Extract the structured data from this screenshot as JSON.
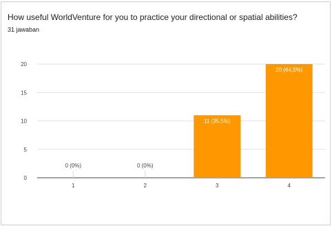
{
  "header": {
    "question": "How useful WorldVenture for you to practice your directional or spatial abilities?",
    "responses": "31 jawaban"
  },
  "colors": {
    "bar": "#ff9800",
    "grid": "#d9d9d9",
    "axis": "#444444",
    "label_inside": "#ffffff",
    "label_outside": "#444444"
  },
  "chart_data": {
    "type": "bar",
    "title": "How useful WorldVenture for you to practice your directional or spatial abilities?",
    "subtitle": "31 jawaban",
    "categories": [
      "1",
      "2",
      "3",
      "4"
    ],
    "values": [
      0,
      0,
      11,
      20
    ],
    "data_labels": [
      "0 (0%)",
      "0 (0%)",
      "11 (35,5%)",
      "20 (64,5%)"
    ],
    "yticks": [
      0,
      5,
      10,
      15,
      20
    ],
    "ylim": [
      0,
      20
    ],
    "xlabel": "",
    "ylabel": "",
    "grid": true,
    "legend": "none"
  }
}
